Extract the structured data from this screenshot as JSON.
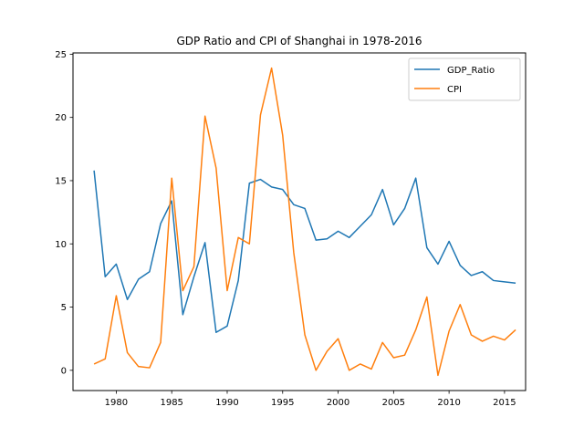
{
  "chart_data": {
    "type": "line",
    "title": "GDP Ratio and CPI of Shanghai in 1978-2016",
    "xlabel": "",
    "ylabel": "",
    "xlim": [
      1976.1,
      2016.9
    ],
    "ylim": [
      -1.6,
      25.1
    ],
    "x_ticks": [
      1980,
      1985,
      1990,
      1995,
      2000,
      2005,
      2010,
      2015
    ],
    "y_ticks": [
      0,
      5,
      10,
      15,
      20,
      25
    ],
    "grid": false,
    "legend_position": "upper-right",
    "x": [
      1978,
      1979,
      1980,
      1981,
      1982,
      1983,
      1984,
      1985,
      1986,
      1987,
      1988,
      1989,
      1990,
      1991,
      1992,
      1993,
      1994,
      1995,
      1996,
      1997,
      1998,
      1999,
      2000,
      2001,
      2002,
      2003,
      2004,
      2005,
      2006,
      2007,
      2008,
      2009,
      2010,
      2011,
      2012,
      2013,
      2014,
      2015,
      2016
    ],
    "series": [
      {
        "name": "GDP_Ratio",
        "color": "#1f77b4",
        "values": [
          15.8,
          7.4,
          8.4,
          5.6,
          7.2,
          7.8,
          11.6,
          13.4,
          4.4,
          7.4,
          10.1,
          3.0,
          3.5,
          7.1,
          14.8,
          15.1,
          14.5,
          14.3,
          13.1,
          12.8,
          10.3,
          10.4,
          11.0,
          10.5,
          11.4,
          12.3,
          14.3,
          11.5,
          12.8,
          15.2,
          9.7,
          8.4,
          10.2,
          8.3,
          7.5,
          7.8,
          7.1,
          7.0,
          6.9
        ]
      },
      {
        "name": "CPI",
        "color": "#ff7f0e",
        "values": [
          0.5,
          0.9,
          5.9,
          1.4,
          0.3,
          0.2,
          2.2,
          15.2,
          6.3,
          8.2,
          20.1,
          16.0,
          6.3,
          10.5,
          10.0,
          20.2,
          23.9,
          18.6,
          9.3,
          2.8,
          0.0,
          1.5,
          2.5,
          0.0,
          0.5,
          0.1,
          2.2,
          1.0,
          1.2,
          3.2,
          5.8,
          -0.4,
          3.1,
          5.2,
          2.8,
          2.3,
          2.7,
          2.4,
          3.2
        ]
      }
    ]
  }
}
